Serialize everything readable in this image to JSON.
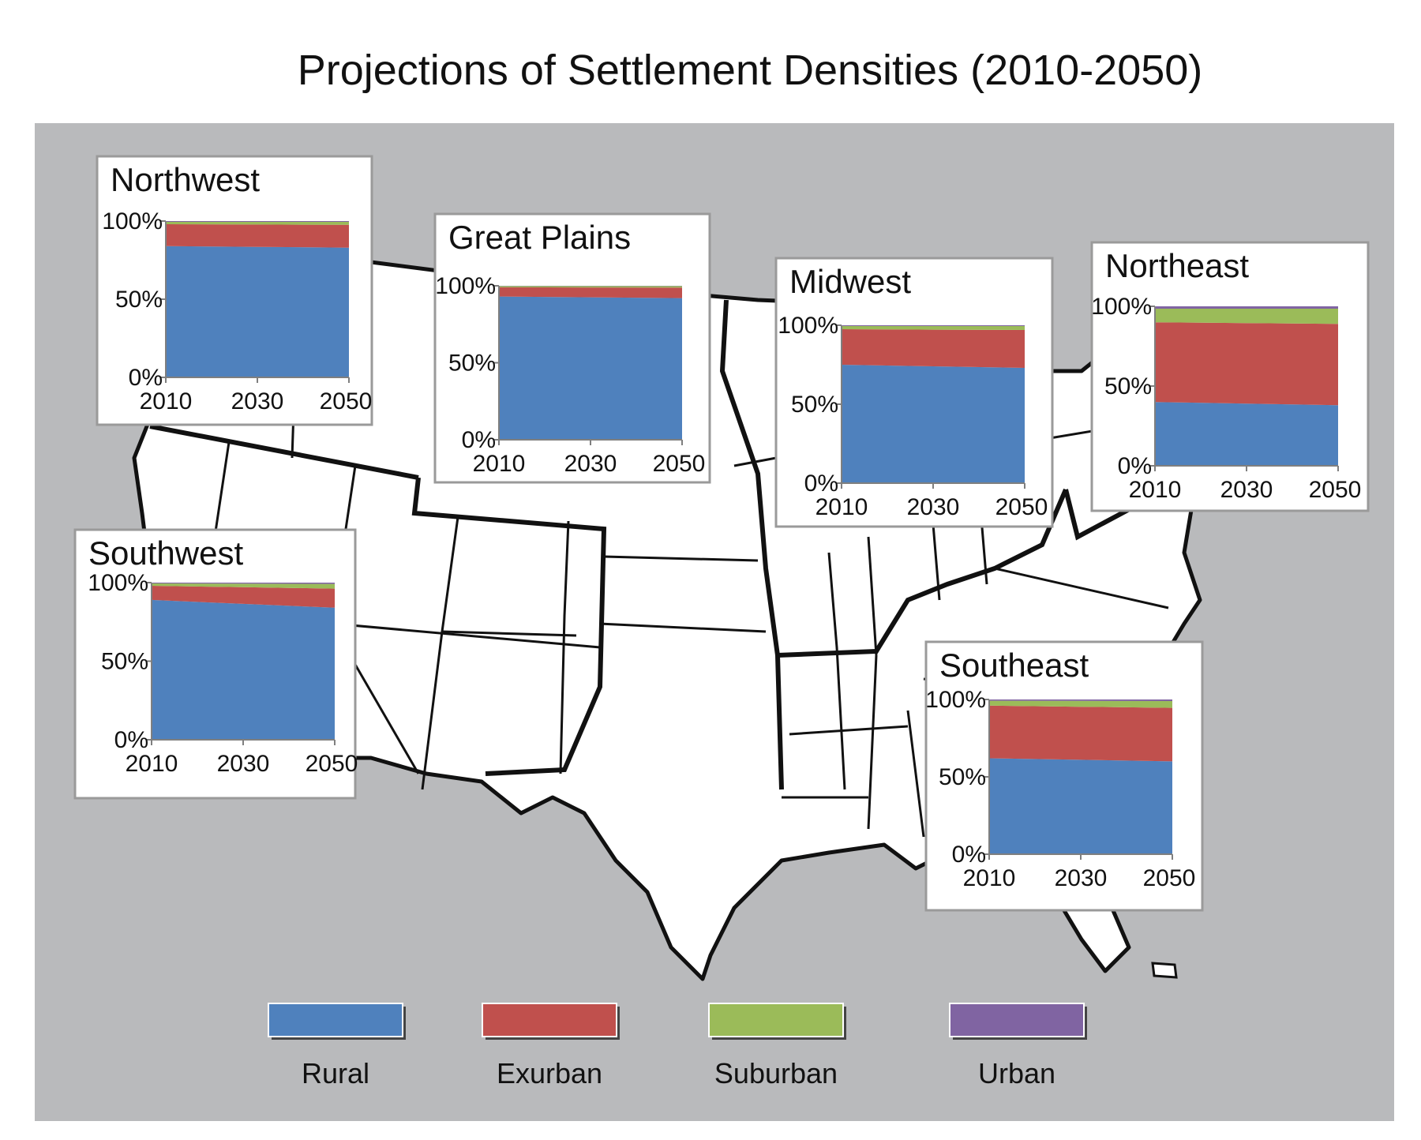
{
  "title": "Projections of Settlement Densities (2010-2050)",
  "colors": {
    "background": "#b9babc",
    "Rural": "#4f81bd",
    "Exurban": "#c0504d",
    "Suburban": "#9bbb59",
    "Urban": "#8064a2"
  },
  "legend": [
    {
      "name": "Rural",
      "color": "#4f81bd"
    },
    {
      "name": "Exurban",
      "color": "#c0504d"
    },
    {
      "name": "Suburban",
      "color": "#9bbb59"
    },
    {
      "name": "Urban",
      "color": "#8064a2"
    }
  ],
  "chart_data": [
    {
      "type": "area",
      "title": "Northwest",
      "x": [
        2010,
        2030,
        2050
      ],
      "xticks": [
        "2010",
        "2030",
        "2050"
      ],
      "yticks": [
        "0%",
        "50%",
        "100%"
      ],
      "ylim": [
        0,
        100
      ],
      "stacked": true,
      "series": [
        {
          "name": "Rural",
          "values": [
            84,
            83.5,
            83
          ]
        },
        {
          "name": "Exurban",
          "values": [
            14,
            14.3,
            14.6
          ]
        },
        {
          "name": "Suburban",
          "values": [
            1.5,
            1.7,
            1.9
          ]
        },
        {
          "name": "Urban",
          "values": [
            0.5,
            0.5,
            0.5
          ]
        }
      ]
    },
    {
      "type": "area",
      "title": "Great Plains",
      "x": [
        2010,
        2030,
        2050
      ],
      "xticks": [
        "2010",
        "2030",
        "2050"
      ],
      "yticks": [
        "0%",
        "50%",
        "100%"
      ],
      "ylim": [
        0,
        100
      ],
      "stacked": true,
      "series": [
        {
          "name": "Rural",
          "values": [
            93,
            92.5,
            92
          ]
        },
        {
          "name": "Exurban",
          "values": [
            6,
            6.4,
            6.8
          ]
        },
        {
          "name": "Suburban",
          "values": [
            0.8,
            0.9,
            1.0
          ]
        },
        {
          "name": "Urban",
          "values": [
            0.2,
            0.2,
            0.2
          ]
        }
      ]
    },
    {
      "type": "area",
      "title": "Midwest",
      "x": [
        2010,
        2030,
        2050
      ],
      "xticks": [
        "2010",
        "2030",
        "2050"
      ],
      "yticks": [
        "0%",
        "50%",
        "100%"
      ],
      "ylim": [
        0,
        100
      ],
      "stacked": true,
      "series": [
        {
          "name": "Rural",
          "values": [
            75,
            74,
            73
          ]
        },
        {
          "name": "Exurban",
          "values": [
            22.5,
            23.2,
            24
          ]
        },
        {
          "name": "Suburban",
          "values": [
            2,
            2.3,
            2.5
          ]
        },
        {
          "name": "Urban",
          "values": [
            0.5,
            0.5,
            0.5
          ]
        }
      ]
    },
    {
      "type": "area",
      "title": "Northeast",
      "x": [
        2010,
        2030,
        2050
      ],
      "xticks": [
        "2010",
        "2030",
        "2050"
      ],
      "yticks": [
        "0%",
        "50%",
        "100%"
      ],
      "ylim": [
        0,
        100
      ],
      "stacked": true,
      "series": [
        {
          "name": "Rural",
          "values": [
            40,
            39,
            38
          ]
        },
        {
          "name": "Exurban",
          "values": [
            50,
            50.5,
            51
          ]
        },
        {
          "name": "Suburban",
          "values": [
            8.5,
            9,
            9.5
          ]
        },
        {
          "name": "Urban",
          "values": [
            1.5,
            1.5,
            1.5
          ]
        }
      ]
    },
    {
      "type": "area",
      "title": "Southwest",
      "x": [
        2010,
        2030,
        2050
      ],
      "xticks": [
        "2010",
        "2030",
        "2050"
      ],
      "yticks": [
        "0%",
        "50%",
        "100%"
      ],
      "ylim": [
        0,
        100
      ],
      "stacked": true,
      "series": [
        {
          "name": "Rural",
          "values": [
            89,
            86.5,
            84
          ]
        },
        {
          "name": "Exurban",
          "values": [
            9,
            10.6,
            12.2
          ]
        },
        {
          "name": "Suburban",
          "values": [
            1.5,
            2.3,
            3.0
          ]
        },
        {
          "name": "Urban",
          "values": [
            0.5,
            0.6,
            0.8
          ]
        }
      ]
    },
    {
      "type": "area",
      "title": "Southeast",
      "x": [
        2010,
        2030,
        2050
      ],
      "xticks": [
        "2010",
        "2030",
        "2050"
      ],
      "yticks": [
        "0%",
        "50%",
        "100%"
      ],
      "ylim": [
        0,
        100
      ],
      "stacked": true,
      "series": [
        {
          "name": "Rural",
          "values": [
            62,
            61,
            60
          ]
        },
        {
          "name": "Exurban",
          "values": [
            34,
            34.3,
            34.6
          ]
        },
        {
          "name": "Suburban",
          "values": [
            3.2,
            3.8,
            4.4
          ]
        },
        {
          "name": "Urban",
          "values": [
            0.8,
            0.9,
            1.0
          ]
        }
      ]
    }
  ]
}
